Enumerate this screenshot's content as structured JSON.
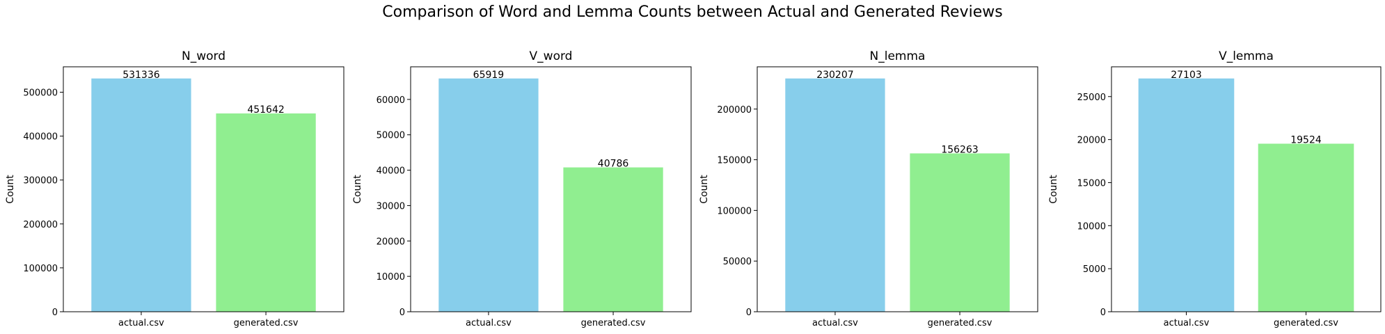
{
  "figure": {
    "suptitle": "Comparison of Word and Lemma Counts between Actual and Generated Reviews"
  },
  "colors": {
    "actual": "#87ceeb",
    "generated": "#90ee90",
    "axis": "#000000"
  },
  "chart_data": [
    {
      "type": "bar",
      "title": "N_word",
      "xlabel": "",
      "ylabel": "Count",
      "categories": [
        "actual.csv",
        "generated.csv"
      ],
      "values": [
        531336,
        451642
      ],
      "data_labels": [
        "531336",
        "451642"
      ],
      "ylim": [
        0,
        557903
      ],
      "yticks": [
        0,
        100000,
        200000,
        300000,
        400000,
        500000
      ],
      "ytick_labels": [
        "0",
        "100000",
        "200000",
        "300000",
        "400000",
        "500000"
      ]
    },
    {
      "type": "bar",
      "title": "V_word",
      "xlabel": "",
      "ylabel": "Count",
      "categories": [
        "actual.csv",
        "generated.csv"
      ],
      "values": [
        65919,
        40786
      ],
      "data_labels": [
        "65919",
        "40786"
      ],
      "ylim": [
        0,
        69215
      ],
      "yticks": [
        0,
        10000,
        20000,
        30000,
        40000,
        50000,
        60000
      ],
      "ytick_labels": [
        "0",
        "10000",
        "20000",
        "30000",
        "40000",
        "50000",
        "60000"
      ]
    },
    {
      "type": "bar",
      "title": "N_lemma",
      "xlabel": "",
      "ylabel": "Count",
      "categories": [
        "actual.csv",
        "generated.csv"
      ],
      "values": [
        230207,
        156263
      ],
      "data_labels": [
        "230207",
        "156263"
      ],
      "ylim": [
        0,
        241717
      ],
      "yticks": [
        0,
        50000,
        100000,
        150000,
        200000
      ],
      "ytick_labels": [
        "0",
        "50000",
        "100000",
        "150000",
        "200000"
      ]
    },
    {
      "type": "bar",
      "title": "V_lemma",
      "xlabel": "",
      "ylabel": "Count",
      "categories": [
        "actual.csv",
        "generated.csv"
      ],
      "values": [
        27103,
        19524
      ],
      "data_labels": [
        "27103",
        "19524"
      ],
      "ylim": [
        0,
        28458
      ],
      "yticks": [
        0,
        5000,
        10000,
        15000,
        20000,
        25000
      ],
      "ytick_labels": [
        "0",
        "5000",
        "10000",
        "15000",
        "20000",
        "25000"
      ]
    }
  ]
}
